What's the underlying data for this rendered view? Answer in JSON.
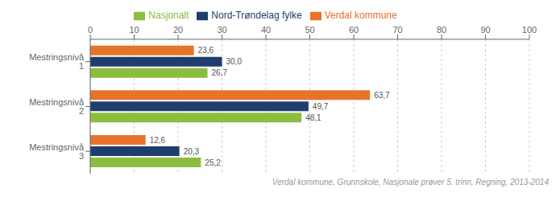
{
  "chart_data": {
    "type": "bar",
    "orientation": "horizontal",
    "categories": [
      "Mestringsnivå 1",
      "Mestringsnivå 2",
      "Mestringsnivå 3"
    ],
    "series": [
      {
        "name": "Verdal kommune",
        "color": "#E8732A",
        "values": [
          23.6,
          63.7,
          12.6
        ],
        "value_labels": [
          "23,6",
          "63,7",
          "12,6"
        ]
      },
      {
        "name": "Nord-Trøndelag fylke",
        "color": "#1F3E6E",
        "values": [
          30.0,
          49.7,
          20.3
        ],
        "value_labels": [
          "30,0",
          "49,7",
          "20,3"
        ]
      },
      {
        "name": "Nasjonalt",
        "color": "#8BBD3F",
        "values": [
          26.7,
          48.1,
          25.2
        ],
        "value_labels": [
          "26,7",
          "48,1",
          "25,2"
        ]
      }
    ],
    "xlim": [
      0,
      100
    ],
    "xticks": [
      0,
      10,
      20,
      30,
      40,
      50,
      60,
      70,
      80,
      90,
      100
    ],
    "grid": true,
    "legend": "top",
    "data_labels": true,
    "annotations": [
      "Verdal kommune, Grunnskole, Nasjonale prøver 5. trinn, Regning, 2013-2014"
    ]
  }
}
